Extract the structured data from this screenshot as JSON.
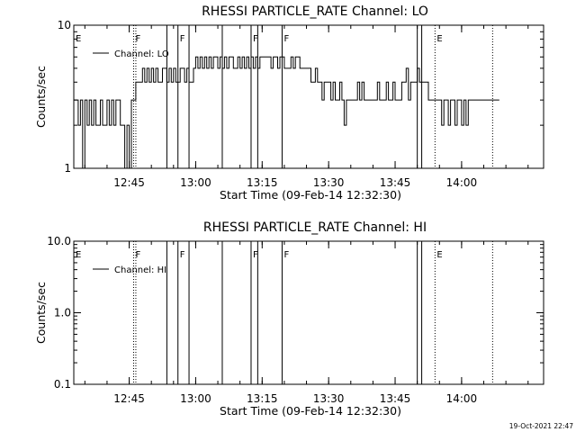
{
  "chart_data": [
    {
      "type": "line",
      "title": "RHESSI PARTICLE_RATE Channel: LO",
      "xlabel": "Start Time (09-Feb-14 12:32:30)",
      "ylabel": "Counts/sec",
      "yscale": "log",
      "ylim": [
        1,
        10
      ],
      "xlim_minutes_after_start": [
        0,
        106
      ],
      "ytick_labels": [
        "1",
        "10"
      ],
      "xtick_labels": [
        "12:45",
        "13:00",
        "13:15",
        "13:30",
        "13:45",
        "14:00"
      ],
      "legend": {
        "position": "top-left",
        "entries": [
          "Channel: LO"
        ]
      },
      "markers": [
        {
          "label": "E",
          "style": "dotted",
          "t": "12:32:30"
        },
        {
          "label": "F",
          "style": "dotted",
          "t": "12:46:00"
        },
        {
          "label": "",
          "style": "dotted",
          "t": "12:46:30"
        },
        {
          "label": "",
          "style": "solid",
          "t": "12:53:30"
        },
        {
          "label": "F",
          "style": "solid",
          "t": "12:56:00"
        },
        {
          "label": "",
          "style": "solid",
          "t": "12:58:30"
        },
        {
          "label": "",
          "style": "solid",
          "t": "13:06:00"
        },
        {
          "label": "F",
          "style": "solid",
          "t": "13:12:30"
        },
        {
          "label": "",
          "style": "solid",
          "t": "13:14:00"
        },
        {
          "label": "F",
          "style": "solid",
          "t": "13:19:30"
        },
        {
          "label": "",
          "style": "solid",
          "t": "13:50:00"
        },
        {
          "label": "",
          "style": "solid",
          "t": "13:51:00"
        },
        {
          "label": "E",
          "style": "dotted",
          "t": "13:54:00"
        },
        {
          "label": "",
          "style": "dotted",
          "t": "14:07:00"
        }
      ],
      "series": [
        {
          "name": "Channel: LO",
          "x_minutes_after_start": [
            0,
            0.5,
            1,
            1.5,
            2,
            2.5,
            3,
            3.5,
            4,
            4.5,
            5,
            5.5,
            6,
            6.5,
            7,
            7.5,
            8,
            8.5,
            9,
            9.5,
            10,
            10.5,
            11,
            11.5,
            12,
            12.5,
            13,
            13.5,
            14,
            14.5,
            15,
            15.5,
            16,
            16.5,
            17,
            17.5,
            18,
            18.5,
            19,
            19.5,
            20,
            20.5,
            21,
            21.5,
            22,
            22.5,
            23,
            23.5,
            24,
            24.5,
            25,
            25.5,
            26,
            26.5,
            27,
            27.5,
            28,
            28.5,
            29,
            29.5,
            30,
            30.5,
            31,
            31.5,
            32,
            32.5,
            33,
            33.5,
            34,
            34.5,
            35,
            35.5,
            36,
            36.5,
            37,
            37.5,
            38,
            38.5,
            39,
            39.5,
            40,
            40.5,
            41,
            41.5,
            42,
            42.5,
            43,
            43.5,
            44,
            44.5,
            45,
            45.5,
            46,
            46.5,
            47,
            47.5,
            48,
            48.5,
            49,
            49.5,
            50,
            50.5,
            51,
            51.5,
            52,
            52.5,
            53,
            53.5,
            54,
            54.5,
            55,
            55.5,
            56,
            56.5,
            57,
            57.5,
            58,
            58.5,
            59,
            59.5,
            60,
            60.5,
            61,
            61.5,
            62,
            62.5,
            63,
            63.5,
            64,
            64.5,
            65,
            65.5,
            66,
            66.5,
            67,
            67.5,
            68,
            68.5,
            69,
            69.5,
            70,
            70.5,
            71,
            71.5,
            72,
            72.5,
            73,
            73.5,
            74,
            74.5,
            75,
            75.5,
            76,
            76.5,
            77,
            77.5,
            78,
            78.5,
            79,
            79.5,
            80,
            80.5,
            81,
            81.5,
            82,
            82.5,
            83,
            83.5,
            84,
            84.5,
            85,
            85.5,
            86,
            86.5,
            87,
            87.5,
            88,
            88.5,
            89,
            89.5,
            90,
            90.5,
            91,
            91.5,
            92,
            92.5,
            93,
            93.5,
            94,
            94.5,
            95,
            95.5,
            96,
            96.5,
            97,
            97.5
          ],
          "values": [
            3,
            3,
            2,
            3,
            1,
            3,
            2,
            3,
            2,
            3,
            2,
            2,
            3,
            2,
            2,
            3,
            2,
            3,
            2,
            3,
            3,
            2,
            2,
            1,
            2,
            1,
            3,
            3,
            4,
            4,
            4,
            5,
            4,
            5,
            4,
            5,
            4,
            5,
            4,
            4,
            5,
            5,
            4,
            5,
            4,
            5,
            4,
            4,
            5,
            5,
            4,
            5,
            4,
            4,
            5,
            6,
            5,
            6,
            5,
            6,
            5,
            6,
            5,
            6,
            6,
            5,
            6,
            5,
            6,
            5,
            6,
            6,
            5,
            5,
            6,
            5,
            6,
            5,
            6,
            5,
            6,
            5,
            6,
            5,
            6,
            6,
            6,
            6,
            6,
            5,
            6,
            6,
            5,
            6,
            6,
            5,
            5,
            5,
            6,
            5,
            6,
            6,
            5,
            5,
            5,
            5,
            5,
            4,
            4,
            5,
            4,
            4,
            3,
            4,
            4,
            4,
            3,
            4,
            3,
            3,
            4,
            3,
            2,
            3,
            3,
            3,
            3,
            3,
            4,
            3,
            4,
            3,
            3,
            3,
            3,
            3,
            3,
            4,
            3,
            3,
            3,
            4,
            3,
            3,
            4,
            3,
            3,
            3,
            4,
            4,
            5,
            3,
            4,
            4,
            4,
            5,
            4,
            4,
            4,
            4,
            3,
            3,
            3,
            3,
            3,
            3,
            2,
            3,
            3,
            2,
            3,
            3,
            2,
            3,
            3,
            2,
            3,
            2,
            3,
            3,
            3,
            3,
            3,
            3,
            3,
            3,
            3,
            3,
            3,
            3,
            3,
            3
          ]
        }
      ]
    },
    {
      "type": "line",
      "title": "RHESSI PARTICLE_RATE Channel: HI",
      "xlabel": "Start Time (09-Feb-14 12:32:30)",
      "ylabel": "Counts/sec",
      "yscale": "log",
      "ylim": [
        0.1,
        10
      ],
      "xlim_minutes_after_start": [
        0,
        106
      ],
      "ytick_labels": [
        "0.1",
        "1.0",
        "10.0"
      ],
      "xtick_labels": [
        "12:45",
        "13:00",
        "13:15",
        "13:30",
        "13:45",
        "14:00"
      ],
      "legend": {
        "position": "top-left",
        "entries": [
          "Channel: HI"
        ]
      },
      "series": [
        {
          "name": "Channel: HI",
          "values": []
        }
      ]
    }
  ],
  "footer": {
    "timestamp": "19-Oct-2021 22:47"
  }
}
